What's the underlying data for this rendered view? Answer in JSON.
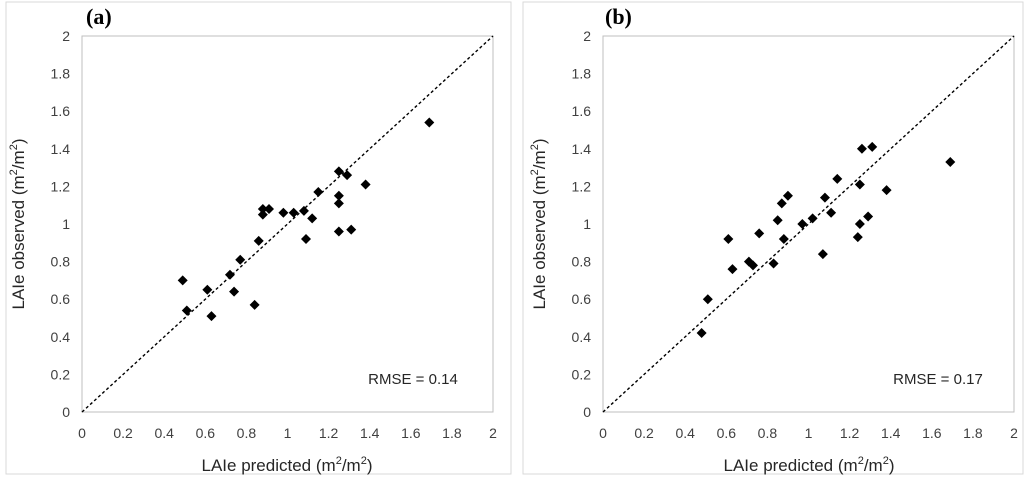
{
  "chart_data": [
    {
      "type": "scatter",
      "panel_label": "(a)",
      "xlabel": {
        "main": "LAIe predicted (m",
        "sup1": "2",
        "mid": "/m",
        "sup2": "2",
        "end": ")"
      },
      "ylabel": {
        "main": "LAIe observed (m",
        "sup1": "2",
        "mid": "/m",
        "sup2": "2",
        "end": ")"
      },
      "xlim": [
        0,
        2
      ],
      "ylim": [
        0,
        2
      ],
      "x_ticks": [
        "0",
        "0.2",
        "0.4",
        "0.6",
        "0.8",
        "1",
        "1.2",
        "1.4",
        "1.6",
        "1.8",
        "2"
      ],
      "y_ticks": [
        "0",
        "0.2",
        "0.4",
        "0.6",
        "0.8",
        "1",
        "1.2",
        "1.4",
        "1.6",
        "1.8",
        "2"
      ],
      "reference_line": "1:1 dashed",
      "annotation": "RMSE = 0.14",
      "points": [
        [
          0.49,
          0.7
        ],
        [
          0.51,
          0.54
        ],
        [
          0.61,
          0.65
        ],
        [
          0.63,
          0.51
        ],
        [
          0.72,
          0.73
        ],
        [
          0.74,
          0.64
        ],
        [
          0.77,
          0.81
        ],
        [
          0.84,
          0.57
        ],
        [
          0.86,
          0.91
        ],
        [
          0.88,
          1.05
        ],
        [
          0.88,
          1.08
        ],
        [
          0.91,
          1.08
        ],
        [
          0.98,
          1.06
        ],
        [
          1.03,
          1.06
        ],
        [
          1.08,
          1.07
        ],
        [
          1.09,
          0.92
        ],
        [
          1.12,
          1.03
        ],
        [
          1.15,
          1.17
        ],
        [
          1.25,
          1.28
        ],
        [
          1.25,
          1.15
        ],
        [
          1.25,
          1.11
        ],
        [
          1.25,
          0.96
        ],
        [
          1.29,
          1.26
        ],
        [
          1.31,
          0.97
        ],
        [
          1.38,
          1.21
        ],
        [
          1.69,
          1.54
        ]
      ]
    },
    {
      "type": "scatter",
      "panel_label": "(b)",
      "xlabel": {
        "main": "LAIe predicted (m",
        "sup1": "2",
        "mid": "/m",
        "sup2": "2",
        "end": ")"
      },
      "ylabel": {
        "main": "LAIe observed (m",
        "sup1": "2",
        "mid": "/m",
        "sup2": "2",
        "end": ")"
      },
      "xlim": [
        0,
        2
      ],
      "ylim": [
        0,
        2
      ],
      "x_ticks": [
        "0",
        "0.2",
        "0.4",
        "0.6",
        "0.8",
        "1",
        "1.2",
        "1.4",
        "1.6",
        "1.8",
        "2"
      ],
      "y_ticks": [
        "0",
        "0.2",
        "0.4",
        "0.6",
        "0.8",
        "1",
        "1.2",
        "1.4",
        "1.6",
        "1.8",
        "2"
      ],
      "reference_line": "1:1 dashed",
      "annotation": "RMSE = 0.17",
      "points": [
        [
          0.48,
          0.42
        ],
        [
          0.51,
          0.6
        ],
        [
          0.61,
          0.92
        ],
        [
          0.63,
          0.76
        ],
        [
          0.71,
          0.8
        ],
        [
          0.73,
          0.78
        ],
        [
          0.76,
          0.95
        ],
        [
          0.83,
          0.79
        ],
        [
          0.85,
          1.02
        ],
        [
          0.87,
          1.11
        ],
        [
          0.88,
          0.92
        ],
        [
          0.9,
          1.15
        ],
        [
          0.97,
          1.0
        ],
        [
          1.02,
          1.03
        ],
        [
          1.07,
          0.84
        ],
        [
          1.08,
          1.14
        ],
        [
          1.11,
          1.06
        ],
        [
          1.14,
          1.24
        ],
        [
          1.24,
          0.93
        ],
        [
          1.25,
          1.21
        ],
        [
          1.25,
          1.0
        ],
        [
          1.26,
          1.4
        ],
        [
          1.29,
          1.04
        ],
        [
          1.31,
          1.41
        ],
        [
          1.38,
          1.18
        ],
        [
          1.69,
          1.33
        ]
      ]
    }
  ]
}
